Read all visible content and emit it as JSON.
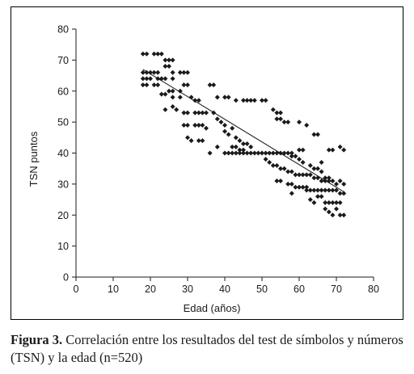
{
  "caption": {
    "label": "Figura 3.",
    "text": " Correlación entre los resultados del test de símbolos y números (TSN) y la edad (n=520)"
  },
  "chart_data": {
    "type": "scatter",
    "xlabel": "Edad (años)",
    "ylabel": "TSN puntos",
    "xlim": [
      0,
      80
    ],
    "ylim": [
      0,
      80
    ],
    "xticks": [
      0,
      10,
      20,
      30,
      40,
      50,
      60,
      70,
      80
    ],
    "yticks": [
      0,
      10,
      20,
      30,
      40,
      50,
      60,
      70,
      80
    ],
    "grid": false,
    "marker_color": "#1a1a1a",
    "trendline": {
      "x": [
        18,
        72
      ],
      "y": [
        67,
        27.5
      ]
    },
    "points": [
      [
        18,
        72
      ],
      [
        19,
        72
      ],
      [
        21,
        72
      ],
      [
        22,
        72
      ],
      [
        23,
        72
      ],
      [
        18,
        66
      ],
      [
        19,
        66
      ],
      [
        20,
        66
      ],
      [
        21,
        66
      ],
      [
        22,
        66
      ],
      [
        18,
        64
      ],
      [
        19,
        64
      ],
      [
        20,
        64
      ],
      [
        22,
        64
      ],
      [
        23,
        64
      ],
      [
        24,
        64
      ],
      [
        18,
        62
      ],
      [
        19,
        62
      ],
      [
        21,
        62
      ],
      [
        22,
        62
      ],
      [
        24,
        70
      ],
      [
        25,
        70
      ],
      [
        26,
        70
      ],
      [
        24,
        68
      ],
      [
        25,
        68
      ],
      [
        26,
        66
      ],
      [
        28,
        66
      ],
      [
        29,
        66
      ],
      [
        30,
        66
      ],
      [
        25,
        60
      ],
      [
        26,
        60
      ],
      [
        28,
        60
      ],
      [
        23,
        59
      ],
      [
        24,
        59
      ],
      [
        26,
        58
      ],
      [
        28,
        58
      ],
      [
        26,
        64
      ],
      [
        29,
        62
      ],
      [
        30,
        62
      ],
      [
        31,
        58
      ],
      [
        32,
        57
      ],
      [
        33,
        57
      ],
      [
        24,
        54
      ],
      [
        26,
        55
      ],
      [
        27,
        54
      ],
      [
        29,
        53
      ],
      [
        30,
        53
      ],
      [
        32,
        53
      ],
      [
        33,
        53
      ],
      [
        34,
        53
      ],
      [
        35,
        53
      ],
      [
        29,
        49
      ],
      [
        30,
        49
      ],
      [
        32,
        49
      ],
      [
        33,
        49
      ],
      [
        34,
        49
      ],
      [
        35,
        48
      ],
      [
        30,
        45
      ],
      [
        31,
        44
      ],
      [
        33,
        44
      ],
      [
        34,
        44
      ],
      [
        36,
        62
      ],
      [
        37,
        62
      ],
      [
        38,
        58
      ],
      [
        40,
        58
      ],
      [
        41,
        58
      ],
      [
        37,
        53
      ],
      [
        38,
        51
      ],
      [
        39,
        50
      ],
      [
        40,
        49
      ],
      [
        40,
        47
      ],
      [
        41,
        46
      ],
      [
        42,
        48
      ],
      [
        43,
        45
      ],
      [
        44,
        44
      ],
      [
        45,
        43
      ],
      [
        46,
        43
      ],
      [
        47,
        42
      ],
      [
        42,
        42
      ],
      [
        43,
        42
      ],
      [
        44,
        41
      ],
      [
        45,
        41
      ],
      [
        46,
        40
      ],
      [
        47,
        40
      ],
      [
        48,
        40
      ],
      [
        49,
        40
      ],
      [
        50,
        40
      ],
      [
        36,
        40
      ],
      [
        38,
        42
      ],
      [
        40,
        40
      ],
      [
        41,
        40
      ],
      [
        42,
        40
      ],
      [
        43,
        40
      ],
      [
        44,
        40
      ],
      [
        45,
        40
      ],
      [
        43,
        57
      ],
      [
        45,
        57
      ],
      [
        46,
        57
      ],
      [
        47,
        57
      ],
      [
        48,
        57
      ],
      [
        50,
        57
      ],
      [
        51,
        57
      ],
      [
        53,
        54
      ],
      [
        54,
        53
      ],
      [
        55,
        53
      ],
      [
        54,
        51
      ],
      [
        55,
        51
      ],
      [
        56,
        50
      ],
      [
        57,
        50
      ],
      [
        51,
        40
      ],
      [
        52,
        40
      ],
      [
        53,
        40
      ],
      [
        54,
        40
      ],
      [
        55,
        40
      ],
      [
        56,
        40
      ],
      [
        57,
        40
      ],
      [
        58,
        40
      ],
      [
        51,
        38
      ],
      [
        52,
        37
      ],
      [
        53,
        36
      ],
      [
        54,
        36
      ],
      [
        55,
        35
      ],
      [
        56,
        35
      ],
      [
        58,
        39
      ],
      [
        59,
        39
      ],
      [
        60,
        41
      ],
      [
        61,
        41
      ],
      [
        60,
        38
      ],
      [
        61,
        37
      ],
      [
        57,
        34
      ],
      [
        58,
        34
      ],
      [
        59,
        33
      ],
      [
        60,
        33
      ],
      [
        61,
        33
      ],
      [
        62,
        33
      ],
      [
        54,
        31
      ],
      [
        55,
        31
      ],
      [
        58,
        30
      ],
      [
        59,
        29
      ],
      [
        60,
        29
      ],
      [
        61,
        29
      ],
      [
        62,
        29
      ],
      [
        57,
        30
      ],
      [
        58,
        27
      ],
      [
        60,
        50
      ],
      [
        62,
        49
      ],
      [
        64,
        46
      ],
      [
        65,
        46
      ],
      [
        63,
        36
      ],
      [
        64,
        35
      ],
      [
        65,
        35
      ],
      [
        66,
        34
      ],
      [
        66,
        37
      ],
      [
        67,
        32
      ],
      [
        68,
        32
      ],
      [
        63,
        33
      ],
      [
        64,
        32
      ],
      [
        65,
        32
      ],
      [
        66,
        31
      ],
      [
        67,
        31
      ],
      [
        68,
        31
      ],
      [
        69,
        31
      ],
      [
        62,
        28
      ],
      [
        63,
        28
      ],
      [
        64,
        28
      ],
      [
        65,
        28
      ],
      [
        66,
        28
      ],
      [
        67,
        28
      ],
      [
        68,
        28
      ],
      [
        69,
        28
      ],
      [
        70,
        28
      ],
      [
        63,
        25
      ],
      [
        64,
        24
      ],
      [
        65,
        26
      ],
      [
        66,
        26
      ],
      [
        67,
        24
      ],
      [
        68,
        24
      ],
      [
        69,
        24
      ],
      [
        70,
        24
      ],
      [
        71,
        24
      ],
      [
        67,
        22
      ],
      [
        68,
        21
      ],
      [
        69,
        20
      ],
      [
        70,
        22
      ],
      [
        71,
        20
      ],
      [
        72,
        20
      ],
      [
        68,
        41
      ],
      [
        69,
        41
      ],
      [
        71,
        42
      ],
      [
        72,
        41
      ],
      [
        70,
        30
      ],
      [
        71,
        31
      ],
      [
        72,
        30
      ],
      [
        71,
        27
      ],
      [
        72,
        27
      ]
    ]
  }
}
